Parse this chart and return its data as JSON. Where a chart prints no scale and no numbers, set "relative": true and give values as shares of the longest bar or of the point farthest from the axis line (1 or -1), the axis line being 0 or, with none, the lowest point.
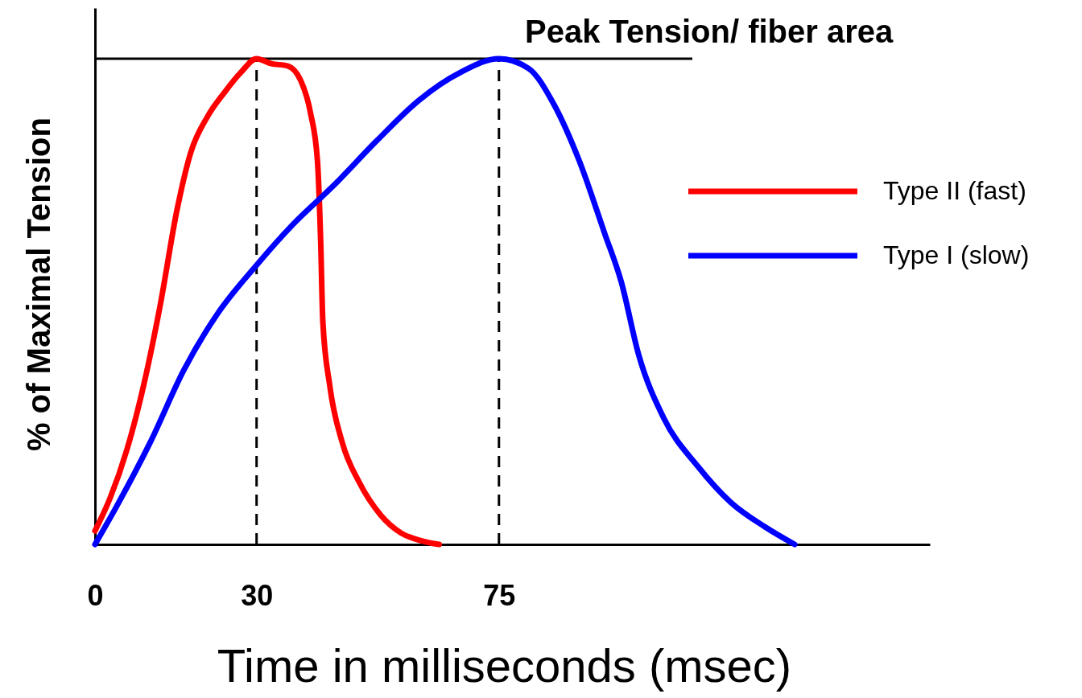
{
  "chart_data": {
    "type": "line",
    "relative": true,
    "xlabel": "Time in milliseconds (msec)",
    "ylabel": "% of Maximal Tension",
    "xlim": [
      0,
      155
    ],
    "xticks": [
      0,
      30,
      75
    ],
    "legend": "right",
    "line_style": "solid",
    "marker": "none",
    "series": [
      {
        "name": "Type II (fast)",
        "color": "#ff0000",
        "x": [
          0,
          2.75,
          5.9,
          9,
          12.1,
          15.25,
          17.75,
          20.9,
          24,
          27.1,
          30,
          32.7,
          35.8,
          38.2,
          40,
          41.3,
          41.9,
          42.3,
          43.6,
          45.9,
          49.1,
          53,
          56.9,
          60.8,
          63.9
        ],
        "values": [
          0.028,
          0.094,
          0.194,
          0.326,
          0.492,
          0.69,
          0.806,
          0.881,
          0.93,
          0.972,
          1,
          0.99,
          0.985,
          0.955,
          0.889,
          0.79,
          0.624,
          0.459,
          0.326,
          0.21,
          0.127,
          0.061,
          0.023,
          0.007,
          0
        ]
      },
      {
        "name": "Type I (slow)",
        "color": "#0000ff",
        "x": [
          0,
          4,
          10.25,
          16.5,
          22.75,
          30,
          36.6,
          44.4,
          52.3,
          60.1,
          67.9,
          75,
          80.5,
          85.2,
          89.9,
          94.6,
          97.7,
          100.9,
          105.6,
          111.9,
          118.1,
          124.4,
          129.9
        ],
        "values": [
          0,
          0.078,
          0.21,
          0.359,
          0.475,
          0.575,
          0.657,
          0.74,
          0.831,
          0.914,
          0.972,
          1,
          0.98,
          0.906,
          0.79,
          0.641,
          0.541,
          0.392,
          0.26,
          0.161,
          0.086,
          0.036,
          0
        ]
      }
    ],
    "ref_lines": [
      {
        "axis": "y",
        "value": 1,
        "label": "Peak Tension/ fiber area",
        "color": "#000000",
        "line_style": "solid"
      },
      {
        "axis": "x",
        "value": 30,
        "color": "#000000",
        "line_style": "dashed"
      },
      {
        "axis": "x",
        "value": 75,
        "color": "#000000",
        "line_style": "dashed"
      }
    ]
  }
}
